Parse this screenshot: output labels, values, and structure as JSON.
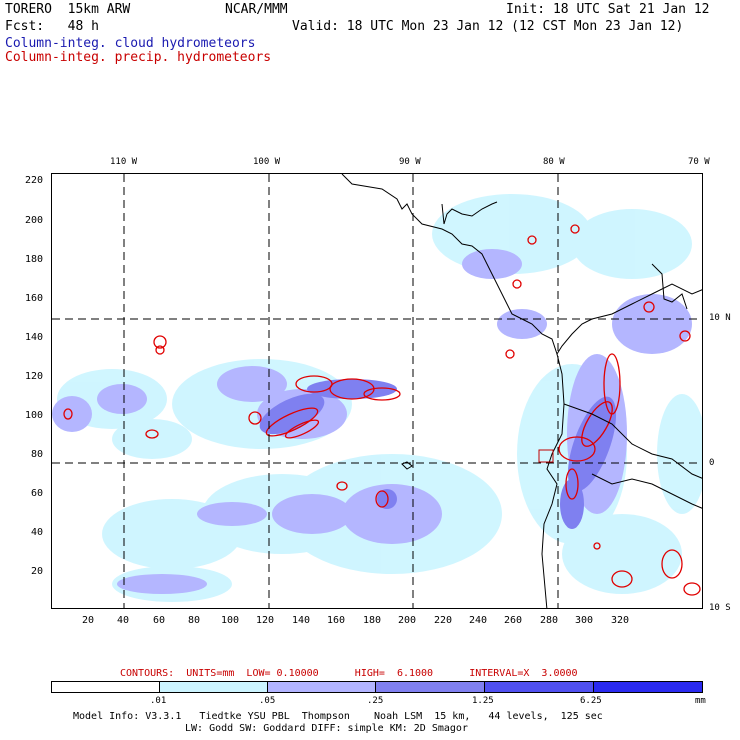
{
  "header": {
    "model": "TORERO  15km ARW",
    "center": "NCAR/MMM",
    "init": "Init: 18 UTC Sat 21 Jan 12",
    "fcst": "Fcst:   48 h",
    "valid": "Valid: 18 UTC Mon 23 Jan 12 (12 CST Mon 23 Jan 12)",
    "field_cloud": "Column-integ. cloud hydrometeors",
    "field_precip": "Column-integ. precip. hydrometeors"
  },
  "map": {
    "lon_labels": [
      "110 W",
      "100 W",
      "90 W",
      "80 W",
      "70 W"
    ],
    "lat_labels": [
      "10 N",
      "0",
      "10 S"
    ],
    "x_ticks": [
      "20",
      "40",
      "60",
      "80",
      "100",
      "120",
      "140",
      "160",
      "180",
      "200",
      "220",
      "240",
      "260",
      "280",
      "300",
      "320"
    ],
    "y_ticks": [
      "220",
      "200",
      "180",
      "160",
      "140",
      "120",
      "100",
      "80",
      "60",
      "40",
      "20"
    ],
    "colors": {
      "land_line": "#000000",
      "precip_contour": "#e00000",
      "grid": "#000000"
    }
  },
  "contours": {
    "label": "CONTOURS:  UNITS=mm  LOW= 0.10000      HIGH=  6.1000      INTERVAL=X  3.0000"
  },
  "colorbar": {
    "labels": [
      ".01",
      ".05",
      ".25",
      "1.25",
      "6.25"
    ],
    "unit": "mm",
    "colors": [
      "#ffffff",
      "#ccf4ff",
      "#b2b4ff",
      "#8080f0",
      "#5050f0",
      "#2a2af0"
    ]
  },
  "footer": {
    "line1": "Model Info: V3.3.1   Tiedtke YSU PBL  Thompson    Noah LSM  15 km,   44 levels,  125 sec",
    "line2": "LW: Godd SW: Goddard DIFF: simple KM: 2D Smagor"
  }
}
